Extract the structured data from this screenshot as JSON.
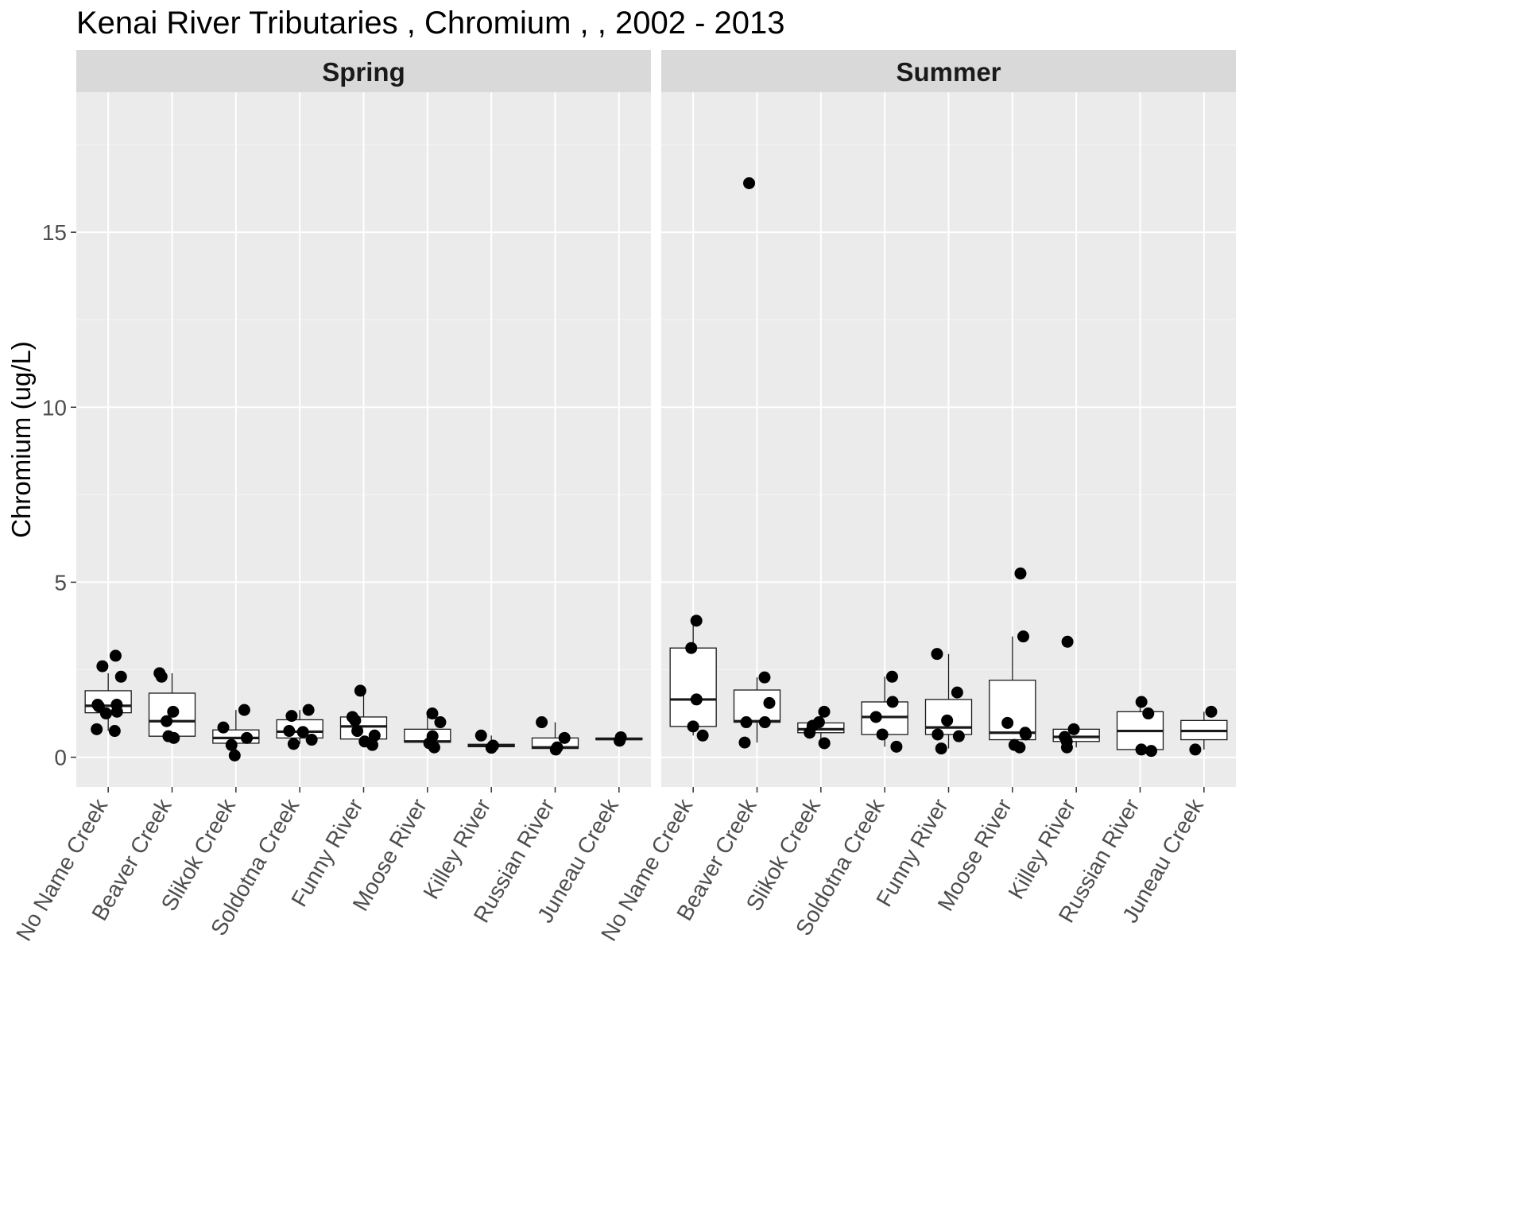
{
  "chart_data": {
    "type": "box",
    "title": "Kenai River Tributaries , Chromium ,  , 2002 - 2013",
    "ylabel": "Chromium (ug/L)",
    "xlabel": "",
    "ylim": [
      -0.85,
      19.0
    ],
    "yticks": [
      0,
      5,
      10,
      15
    ],
    "categories": [
      "No Name Creek",
      "Beaver Creek",
      "Slikok Creek",
      "Soldotna Creek",
      "Funny River",
      "Moose River",
      "Killey River",
      "Russian River",
      "Juneau Creek"
    ],
    "facets": [
      {
        "name": "Spring",
        "boxes": [
          {
            "q1": 1.27,
            "median": 1.47,
            "q3": 1.9,
            "whisker_low": 0.75,
            "whisker_high": 2.4,
            "points": [
              0.75,
              0.8,
              1.25,
              1.3,
              1.45,
              1.5,
              1.5,
              2.3,
              2.6,
              2.9
            ]
          },
          {
            "q1": 0.6,
            "median": 1.03,
            "q3": 1.83,
            "whisker_low": 0.55,
            "whisker_high": 2.4,
            "points": [
              0.55,
              0.6,
              1.03,
              1.3,
              2.3,
              2.4
            ]
          },
          {
            "q1": 0.4,
            "median": 0.55,
            "q3": 0.78,
            "whisker_low": 0.05,
            "whisker_high": 1.35,
            "points": [
              0.05,
              0.35,
              0.55,
              0.85,
              1.35
            ]
          },
          {
            "q1": 0.55,
            "median": 0.73,
            "q3": 1.07,
            "whisker_low": 0.38,
            "whisker_high": 1.35,
            "points": [
              0.38,
              0.5,
              0.72,
              0.75,
              1.18,
              1.35
            ]
          },
          {
            "q1": 0.52,
            "median": 0.88,
            "q3": 1.15,
            "whisker_low": 0.35,
            "whisker_high": 1.9,
            "points": [
              0.35,
              0.45,
              0.62,
              0.75,
              1.05,
              1.15,
              1.9
            ]
          },
          {
            "q1": 0.43,
            "median": 0.45,
            "q3": 0.8,
            "whisker_low": 0.28,
            "whisker_high": 1.25,
            "points": [
              0.28,
              0.4,
              0.6,
              1.0,
              1.25
            ]
          },
          {
            "q1": 0.3,
            "median": 0.33,
            "q3": 0.37,
            "whisker_low": 0.27,
            "whisker_high": 0.62,
            "points": [
              0.27,
              0.33,
              0.62
            ]
          },
          {
            "q1": 0.25,
            "median": 0.28,
            "q3": 0.55,
            "whisker_low": 0.22,
            "whisker_high": 1.0,
            "points": [
              0.22,
              0.28,
              0.55,
              1.0
            ]
          },
          {
            "q1": 0.5,
            "median": 0.52,
            "q3": 0.55,
            "whisker_low": 0.47,
            "whisker_high": 0.57,
            "points": [
              0.47,
              0.57
            ]
          }
        ]
      },
      {
        "name": "Summer",
        "boxes": [
          {
            "q1": 0.88,
            "median": 1.65,
            "q3": 3.12,
            "whisker_low": 0.62,
            "whisker_high": 3.9,
            "points": [
              0.62,
              0.88,
              1.65,
              3.12,
              3.9
            ]
          },
          {
            "q1": 1.0,
            "median": 1.03,
            "q3": 1.92,
            "whisker_low": 0.42,
            "whisker_high": 2.28,
            "points": [
              0.42,
              1.0,
              1.0,
              1.55,
              2.28,
              16.4
            ]
          },
          {
            "q1": 0.7,
            "median": 0.8,
            "q3": 0.98,
            "whisker_low": 0.4,
            "whisker_high": 1.3,
            "points": [
              0.4,
              0.7,
              0.9,
              1.0,
              1.3
            ]
          },
          {
            "q1": 0.65,
            "median": 1.15,
            "q3": 1.58,
            "whisker_low": 0.3,
            "whisker_high": 2.3,
            "points": [
              0.3,
              0.65,
              1.15,
              1.58,
              2.3
            ]
          },
          {
            "q1": 0.65,
            "median": 0.85,
            "q3": 1.65,
            "whisker_low": 0.25,
            "whisker_high": 2.95,
            "points": [
              0.25,
              0.6,
              0.65,
              1.05,
              1.85,
              2.95
            ]
          },
          {
            "q1": 0.5,
            "median": 0.7,
            "q3": 2.2,
            "whisker_low": 0.28,
            "whisker_high": 3.45,
            "points": [
              0.28,
              0.35,
              0.65,
              0.7,
              0.98,
              3.45,
              5.25
            ]
          },
          {
            "q1": 0.45,
            "median": 0.58,
            "q3": 0.8,
            "whisker_low": 0.28,
            "whisker_high": 0.8,
            "points": [
              0.28,
              0.45,
              0.58,
              0.8,
              3.3
            ]
          },
          {
            "q1": 0.22,
            "median": 0.75,
            "q3": 1.3,
            "whisker_low": 0.18,
            "whisker_high": 1.58,
            "points": [
              0.18,
              0.22,
              1.25,
              1.58
            ]
          },
          {
            "q1": 0.5,
            "median": 0.75,
            "q3": 1.05,
            "whisker_low": 0.22,
            "whisker_high": 1.3,
            "points": [
              0.22,
              1.3
            ]
          }
        ]
      }
    ],
    "grid": true,
    "legend": "none",
    "colors": {
      "panel_bg": "#ebebeb",
      "grid_major": "#ffffff",
      "grid_minor": "#f5f5f5",
      "strip_bg": "#d9d9d9",
      "box_fill": "#ffffff",
      "line": "#1a1a1a",
      "point": "#000000",
      "tick": "#333333",
      "tick_label": "#4d4d4d"
    }
  }
}
